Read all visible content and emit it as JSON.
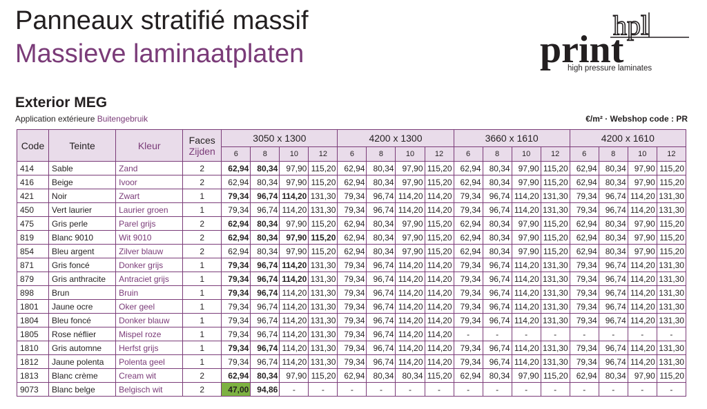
{
  "header": {
    "title_fr": "Panneaux stratifié massif",
    "title_nl": "Massieve laminaatplaten"
  },
  "logo": {
    "brand": "print",
    "badge": "hpl",
    "tagline": "high pressure laminates"
  },
  "section": {
    "title": "Exterior MEG",
    "subtitle_fr": "Application extérieure",
    "subtitle_nl": "Buitengebruik",
    "price_note": "€/m² · Webshop code : PR"
  },
  "table": {
    "headers": {
      "code": "Code",
      "teinte": "Teinte",
      "kleur": "Kleur",
      "faces": "Faces",
      "zijden": "Zijden"
    },
    "sizes": [
      "3050 x 1300",
      "4200 x 1300",
      "3660 x 1610",
      "4200 x 1610"
    ],
    "thicknesses": [
      "6",
      "8",
      "10",
      "12"
    ],
    "rows": [
      {
        "code": "414",
        "teinte": "Sable",
        "kleur": "Zand",
        "faces": "2",
        "prices": [
          "62,94",
          "80,34",
          "97,90",
          "115,20",
          "62,94",
          "80,34",
          "97,90",
          "115,20",
          "62,94",
          "80,34",
          "97,90",
          "115,20",
          "62,94",
          "80,34",
          "97,90",
          "115,20"
        ],
        "bold": [
          0,
          1
        ]
      },
      {
        "code": "416",
        "teinte": "Beige",
        "kleur": "Ivoor",
        "faces": "2",
        "prices": [
          "62,94",
          "80,34",
          "97,90",
          "115,20",
          "62,94",
          "80,34",
          "97,90",
          "115,20",
          "62,94",
          "80,34",
          "97,90",
          "115,20",
          "62,94",
          "80,34",
          "97,90",
          "115,20"
        ],
        "bold": []
      },
      {
        "code": "421",
        "teinte": "Noir",
        "kleur": "Zwart",
        "faces": "1",
        "prices": [
          "79,34",
          "96,74",
          "114,20",
          "131,30",
          "79,34",
          "96,74",
          "114,20",
          "114,20",
          "79,34",
          "96,74",
          "114,20",
          "131,30",
          "79,34",
          "96,74",
          "114,20",
          "131,30"
        ],
        "bold": [
          0,
          1,
          2
        ]
      },
      {
        "code": "450",
        "teinte": "Vert laurier",
        "kleur": "Laurier groen",
        "faces": "1",
        "prices": [
          "79,34",
          "96,74",
          "114,20",
          "131,30",
          "79,34",
          "96,74",
          "114,20",
          "114,20",
          "79,34",
          "96,74",
          "114,20",
          "131,30",
          "79,34",
          "96,74",
          "114,20",
          "131,30"
        ],
        "bold": []
      },
      {
        "code": "475",
        "teinte": "Gris perle",
        "kleur": "Parel grijs",
        "faces": "2",
        "prices": [
          "62,94",
          "80,34",
          "97,90",
          "115,20",
          "62,94",
          "80,34",
          "97,90",
          "115,20",
          "62,94",
          "80,34",
          "97,90",
          "115,20",
          "62,94",
          "80,34",
          "97,90",
          "115,20"
        ],
        "bold": [
          0,
          1
        ]
      },
      {
        "code": "819",
        "teinte": "Blanc 9010",
        "kleur": "Wit 9010",
        "faces": "2",
        "prices": [
          "62,94",
          "80,34",
          "97,90",
          "115,20",
          "62,94",
          "80,34",
          "97,90",
          "115,20",
          "62,94",
          "80,34",
          "97,90",
          "115,20",
          "62,94",
          "80,34",
          "97,90",
          "115,20"
        ],
        "bold": [
          0,
          1,
          2,
          3
        ]
      },
      {
        "code": "854",
        "teinte": "Bleu argent",
        "kleur": "Zilver blauw",
        "faces": "2",
        "prices": [
          "62,94",
          "80,34",
          "97,90",
          "115,20",
          "62,94",
          "80,34",
          "97,90",
          "115,20",
          "62,94",
          "80,34",
          "97,90",
          "115,20",
          "62,94",
          "80,34",
          "97,90",
          "115,20"
        ],
        "bold": []
      },
      {
        "code": "871",
        "teinte": "Gris foncé",
        "kleur": "Donker grijs",
        "faces": "1",
        "prices": [
          "79,34",
          "96,74",
          "114,20",
          "131,30",
          "79,34",
          "96,74",
          "114,20",
          "114,20",
          "79,34",
          "96,74",
          "114,20",
          "131,30",
          "79,34",
          "96,74",
          "114,20",
          "131,30"
        ],
        "bold": [
          0,
          1,
          2
        ]
      },
      {
        "code": "879",
        "teinte": "Gris anthracite",
        "kleur": "Antraciet grijs",
        "faces": "1",
        "prices": [
          "79,34",
          "96,74",
          "114,20",
          "131,30",
          "79,34",
          "96,74",
          "114,20",
          "114,20",
          "79,34",
          "96,74",
          "114,20",
          "131,30",
          "79,34",
          "96,74",
          "114,20",
          "131,30"
        ],
        "bold": [
          0,
          1,
          2
        ]
      },
      {
        "code": "898",
        "teinte": "Brun",
        "kleur": "Bruin",
        "faces": "1",
        "prices": [
          "79,34",
          "96,74",
          "114,20",
          "131,30",
          "79,34",
          "96,74",
          "114,20",
          "114,20",
          "79,34",
          "96,74",
          "114,20",
          "131,30",
          "79,34",
          "96,74",
          "114,20",
          "131,30"
        ],
        "bold": [
          0,
          1
        ]
      },
      {
        "code": "1801",
        "teinte": "Jaune ocre",
        "kleur": "Oker geel",
        "faces": "1",
        "prices": [
          "79,34",
          "96,74",
          "114,20",
          "131,30",
          "79,34",
          "96,74",
          "114,20",
          "114,20",
          "79,34",
          "96,74",
          "114,20",
          "131,30",
          "79,34",
          "96,74",
          "114,20",
          "131,30"
        ],
        "bold": []
      },
      {
        "code": "1804",
        "teinte": "Bleu foncé",
        "kleur": "Donker blauw",
        "faces": "1",
        "prices": [
          "79,34",
          "96,74",
          "114,20",
          "131,30",
          "79,34",
          "96,74",
          "114,20",
          "114,20",
          "79,34",
          "96,74",
          "114,20",
          "131,30",
          "79,34",
          "96,74",
          "114,20",
          "131,30"
        ],
        "bold": []
      },
      {
        "code": "1805",
        "teinte": "Rose néflier",
        "kleur": "Mispel roze",
        "faces": "1",
        "prices": [
          "79,34",
          "96,74",
          "114,20",
          "131,30",
          "79,34",
          "96,74",
          "114,20",
          "114,20",
          "-",
          "-",
          "-",
          "-",
          "-",
          "-",
          "-",
          "-"
        ],
        "bold": []
      },
      {
        "code": "1810",
        "teinte": "Gris automne",
        "kleur": "Herfst grijs",
        "faces": "1",
        "prices": [
          "79,34",
          "96,74",
          "114,20",
          "131,30",
          "79,34",
          "96,74",
          "114,20",
          "114,20",
          "79,34",
          "96,74",
          "114,20",
          "131,30",
          "79,34",
          "96,74",
          "114,20",
          "131,30"
        ],
        "bold": [
          0,
          1
        ]
      },
      {
        "code": "1812",
        "teinte": "Jaune polenta",
        "kleur": "Polenta geel",
        "faces": "1",
        "prices": [
          "79,34",
          "96,74",
          "114,20",
          "131,30",
          "79,34",
          "96,74",
          "114,20",
          "114,20",
          "79,34",
          "96,74",
          "114,20",
          "131,30",
          "79,34",
          "96,74",
          "114,20",
          "131,30"
        ],
        "bold": []
      },
      {
        "code": "1813",
        "teinte": "Blanc crème",
        "kleur": "Cream wit",
        "faces": "2",
        "prices": [
          "62,94",
          "80,34",
          "97,90",
          "115,20",
          "62,94",
          "80,34",
          "80,34",
          "115,20",
          "62,94",
          "80,34",
          "97,90",
          "115,20",
          "62,94",
          "80,34",
          "97,90",
          "115,20"
        ],
        "bold": [
          0,
          1
        ]
      },
      {
        "code": "9073",
        "teinte": "Blanc belge",
        "kleur": "Belgisch wit",
        "faces": "2",
        "prices": [
          "47,00",
          "94,86",
          "-",
          "-",
          "-",
          "-",
          "-",
          "-",
          "-",
          "-",
          "-",
          "-",
          "-",
          "-",
          "-",
          "-"
        ],
        "bold": [
          0,
          1
        ],
        "highlight": [
          0
        ]
      }
    ]
  },
  "colors": {
    "accent_purple": "#7a3b78",
    "header_bg": "#e9dcea",
    "highlight_green": "#7db242"
  }
}
